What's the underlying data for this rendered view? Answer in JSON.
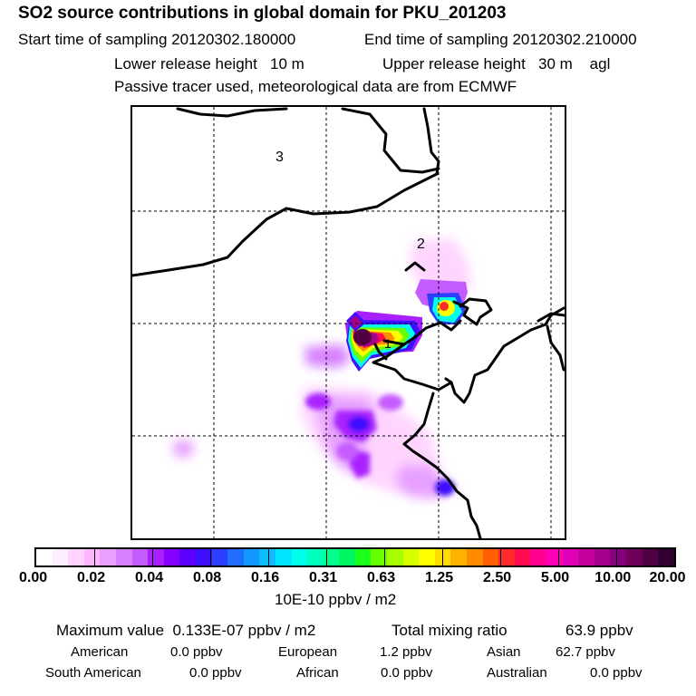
{
  "header": {
    "title": "SO2 source contributions in global domain for PKU_201203",
    "start_time": "Start time of sampling 20120302.180000",
    "end_time": "End time of sampling 20120302.210000",
    "lower_release": "Lower release height   10 m",
    "upper_release": "Upper release height   30 m    agl",
    "tracer_note": "Passive tracer used, meteorological data are from ECMWF"
  },
  "map": {
    "labels": [
      "3",
      "2",
      "1"
    ],
    "coastline_color": "#000000",
    "grid_style": "dashed"
  },
  "colorbar": {
    "labels": [
      "0.00",
      "0.02",
      "0.04",
      "0.08",
      "0.16",
      "0.31",
      "0.63",
      "1.25",
      "2.50",
      "5.00",
      "10.00",
      "20.00"
    ],
    "unit": "10E-10 ppbv / m2",
    "colors": [
      "#ffffff",
      "#ffeeff",
      "#ffd5ff",
      "#ffb5ff",
      "#e7a0ff",
      "#d780ff",
      "#c45bff",
      "#a920ff",
      "#8400ff",
      "#5b00ff",
      "#3c0fff",
      "#2c3fff",
      "#206dff",
      "#1398ff",
      "#0dbdff",
      "#00e5ff",
      "#00ffe8",
      "#00ffbb",
      "#00ff8c",
      "#00f764",
      "#1bff1d",
      "#68ff00",
      "#a5ff00",
      "#d7ff00",
      "#ffff00",
      "#ffdc00",
      "#ffb200",
      "#ff8b00",
      "#ff5f00",
      "#ff2a2a",
      "#ff0a50",
      "#ff0090",
      "#ff00b5",
      "#e000b8",
      "#c4009f",
      "#a5008c",
      "#85007d",
      "#6f0059",
      "#4f0045",
      "#300030"
    ]
  },
  "stats": {
    "max_label": "Maximum value  0.133E-07 ppbv / m2",
    "total_label": "Total mixing ratio",
    "total_value": "63.9 ppbv",
    "american_label": "American",
    "american_value": "0.0 ppbv",
    "european_label": "European",
    "european_value": "1.2 ppbv",
    "asian_label": "Asian",
    "asian_value": "62.7 ppbv",
    "south_american_label": "South American",
    "south_american_value": "0.0 ppbv",
    "african_label": "African",
    "african_value": "0.0 ppbv",
    "australian_label": "Australian",
    "australian_value": "0.0 ppbv"
  }
}
